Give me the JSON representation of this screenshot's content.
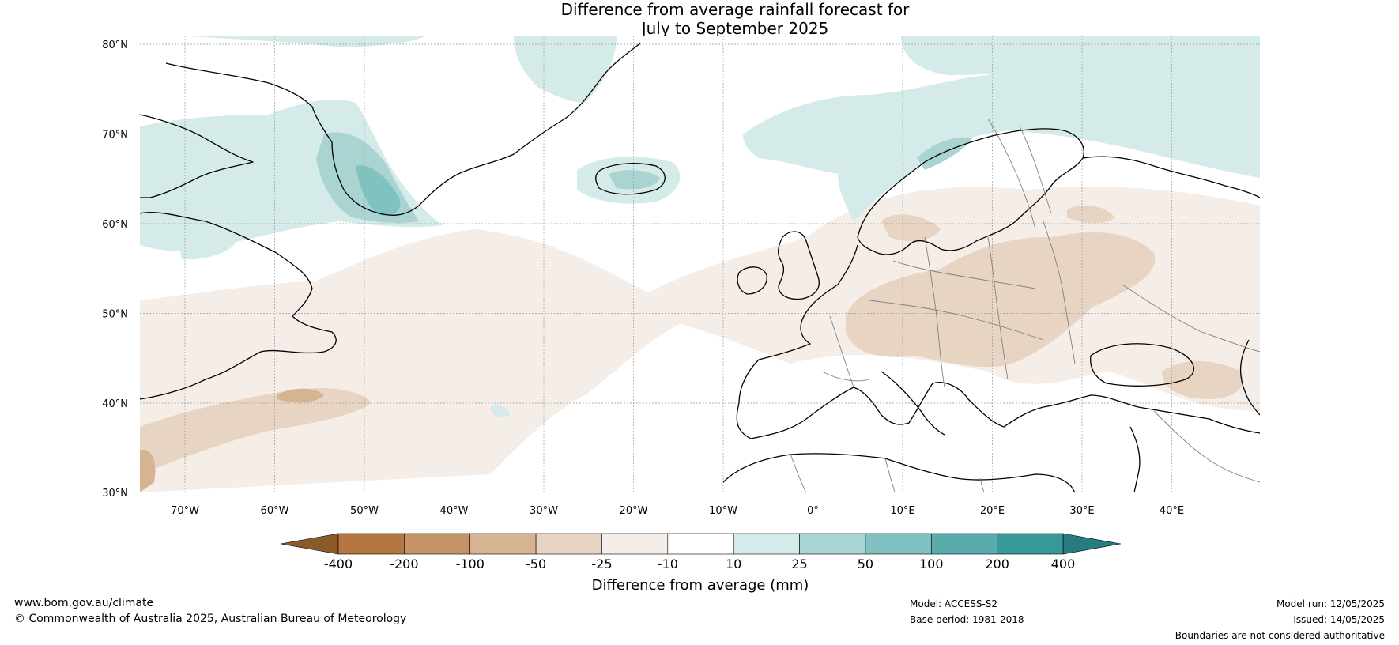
{
  "title": {
    "line1": "Difference from average rainfall forecast for",
    "line2": "July to September 2025"
  },
  "axes": {
    "lon_labels": [
      "70°W",
      "60°W",
      "50°W",
      "40°W",
      "30°W",
      "20°W",
      "10°W",
      "0°",
      "10°E",
      "20°E",
      "30°E",
      "40°E"
    ],
    "lat_labels": [
      "80°N",
      "70°N",
      "60°N",
      "50°N",
      "40°N",
      "30°N"
    ]
  },
  "colorbar": {
    "title": "Difference from average (mm)",
    "tick_labels": [
      "-400",
      "-200",
      "-100",
      "-50",
      "-25",
      "-10",
      "10",
      "25",
      "50",
      "100",
      "200",
      "400"
    ],
    "colors": {
      "below_min": "#8b5a2b",
      "bins": [
        "#b5773f",
        "#c49467",
        "#d6b492",
        "#e8d4c3",
        "#f5ede7",
        "#ffffff",
        "#d5ebe9",
        "#a9d4d2",
        "#80c2bf",
        "#5aabab",
        "#37999a"
      ],
      "above_max": "#277d7d"
    }
  },
  "footer": {
    "website": "www.bom.gov.au/climate",
    "copyright": "© Commonwealth of Australia 2025, Australian Bureau of Meteorology",
    "model": "Model: ACCESS-S2",
    "base_period": "Base period: 1981-2018",
    "model_run": "Model run: 12/05/2025",
    "issued": "Issued: 14/05/2025",
    "disclaimer": "Boundaries are not considered authoritative"
  },
  "palette": {
    "coast": "#000000",
    "borders": "#808080",
    "grid": "#999999",
    "dry_light": "#f5ede7",
    "dry_mid": "#e8d4c3",
    "dry_dark": "#d6b492",
    "wet_light": "#d5ebe9",
    "wet_mid": "#a9d4d2",
    "wet_dark": "#80c2bf"
  }
}
